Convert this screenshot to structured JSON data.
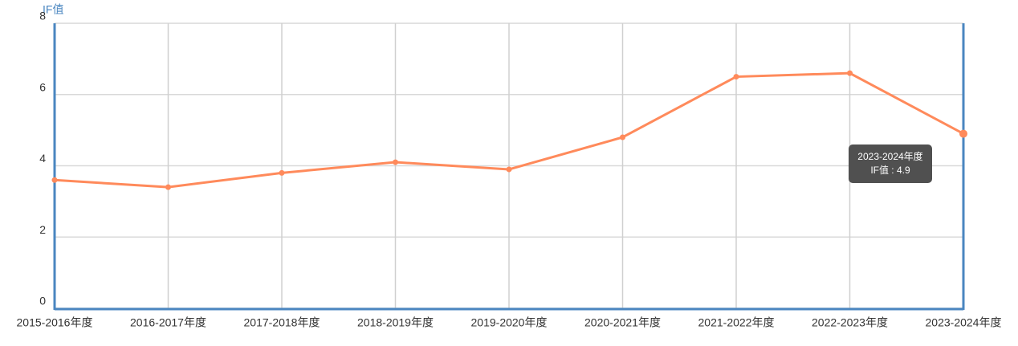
{
  "chart_data": {
    "type": "line",
    "y_label": "IF值",
    "categories": [
      "2015-2016年度",
      "2016-2017年度",
      "2017-2018年度",
      "2018-2019年度",
      "2019-2020年度",
      "2020-2021年度",
      "2021-2022年度",
      "2022-2023年度",
      "2023-2024年度"
    ],
    "series": [
      {
        "name": "IF值",
        "color": "#ff8a5b",
        "values": [
          3.6,
          3.4,
          3.8,
          4.1,
          3.9,
          4.8,
          6.5,
          6.6,
          4.9
        ]
      }
    ],
    "ylim": [
      0,
      8
    ],
    "yticks": [
      0,
      2,
      4,
      6,
      8
    ],
    "grid": true,
    "axis_color": "#4a86c0",
    "tooltip": {
      "title": "2023-2024年度",
      "text": "IF值 : 4.9"
    }
  }
}
